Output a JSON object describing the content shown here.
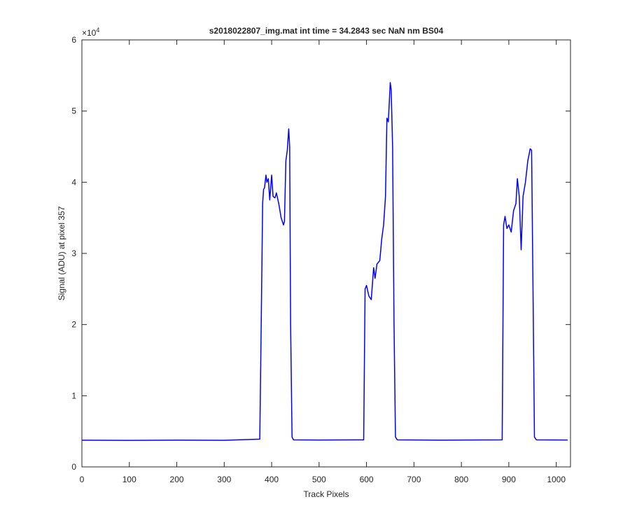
{
  "chart_data": {
    "type": "line",
    "title": "s2018022807_img.mat int time = 34.2843 sec  NaN nm BS04",
    "x_label": "Track Pixels",
    "y_label": "Signal (ADU) at pixel 357",
    "y_multiplier": {
      "base": "×10",
      "exponent": "4"
    },
    "color": "#0000ff",
    "x": [
      0,
      100,
      200,
      300,
      375,
      378,
      381,
      383,
      385,
      388,
      390,
      393,
      396,
      400,
      403,
      407,
      410,
      415,
      420,
      425,
      427,
      430,
      433,
      436,
      438,
      440,
      443,
      446,
      500,
      594,
      597,
      600,
      605,
      610,
      615,
      618,
      622,
      628,
      632,
      636,
      640,
      643,
      646,
      650,
      652,
      655,
      658,
      661,
      665,
      750,
      886,
      889,
      892,
      896,
      900,
      905,
      910,
      915,
      918,
      922,
      926,
      930,
      935,
      940,
      945,
      948,
      951,
      954,
      958,
      1024
    ],
    "values": [
      3750,
      3720,
      3760,
      3740,
      3900,
      20000,
      37000,
      39000,
      39200,
      41000,
      40000,
      40500,
      37500,
      41000,
      38000,
      37800,
      38500,
      37000,
      35000,
      34000,
      34500,
      43000,
      44500,
      47500,
      45000,
      20000,
      4200,
      3800,
      3780,
      3800,
      25000,
      25500,
      24000,
      23500,
      28000,
      26500,
      28500,
      29000,
      32000,
      34000,
      38000,
      49000,
      48500,
      54000,
      53000,
      45000,
      20000,
      4200,
      3800,
      3760,
      3800,
      34000,
      35200,
      33500,
      34000,
      33000,
      36000,
      37000,
      40500,
      38000,
      30500,
      38000,
      40000,
      43000,
      44700,
      44500,
      25000,
      4200,
      3800,
      3780
    ],
    "xlim": [
      0,
      1030
    ],
    "ylim": [
      0,
      60000
    ],
    "xticks": [
      0,
      100,
      200,
      300,
      400,
      500,
      600,
      700,
      800,
      900,
      1000
    ],
    "yticks": [
      0,
      {
        "value": 10000,
        "label": "1"
      },
      {
        "value": 20000,
        "label": "2"
      },
      {
        "value": 30000,
        "label": "3"
      },
      {
        "value": 40000,
        "label": "4"
      },
      {
        "value": 50000,
        "label": "5"
      },
      {
        "value": 60000,
        "label": "6"
      }
    ],
    "grid": false
  }
}
